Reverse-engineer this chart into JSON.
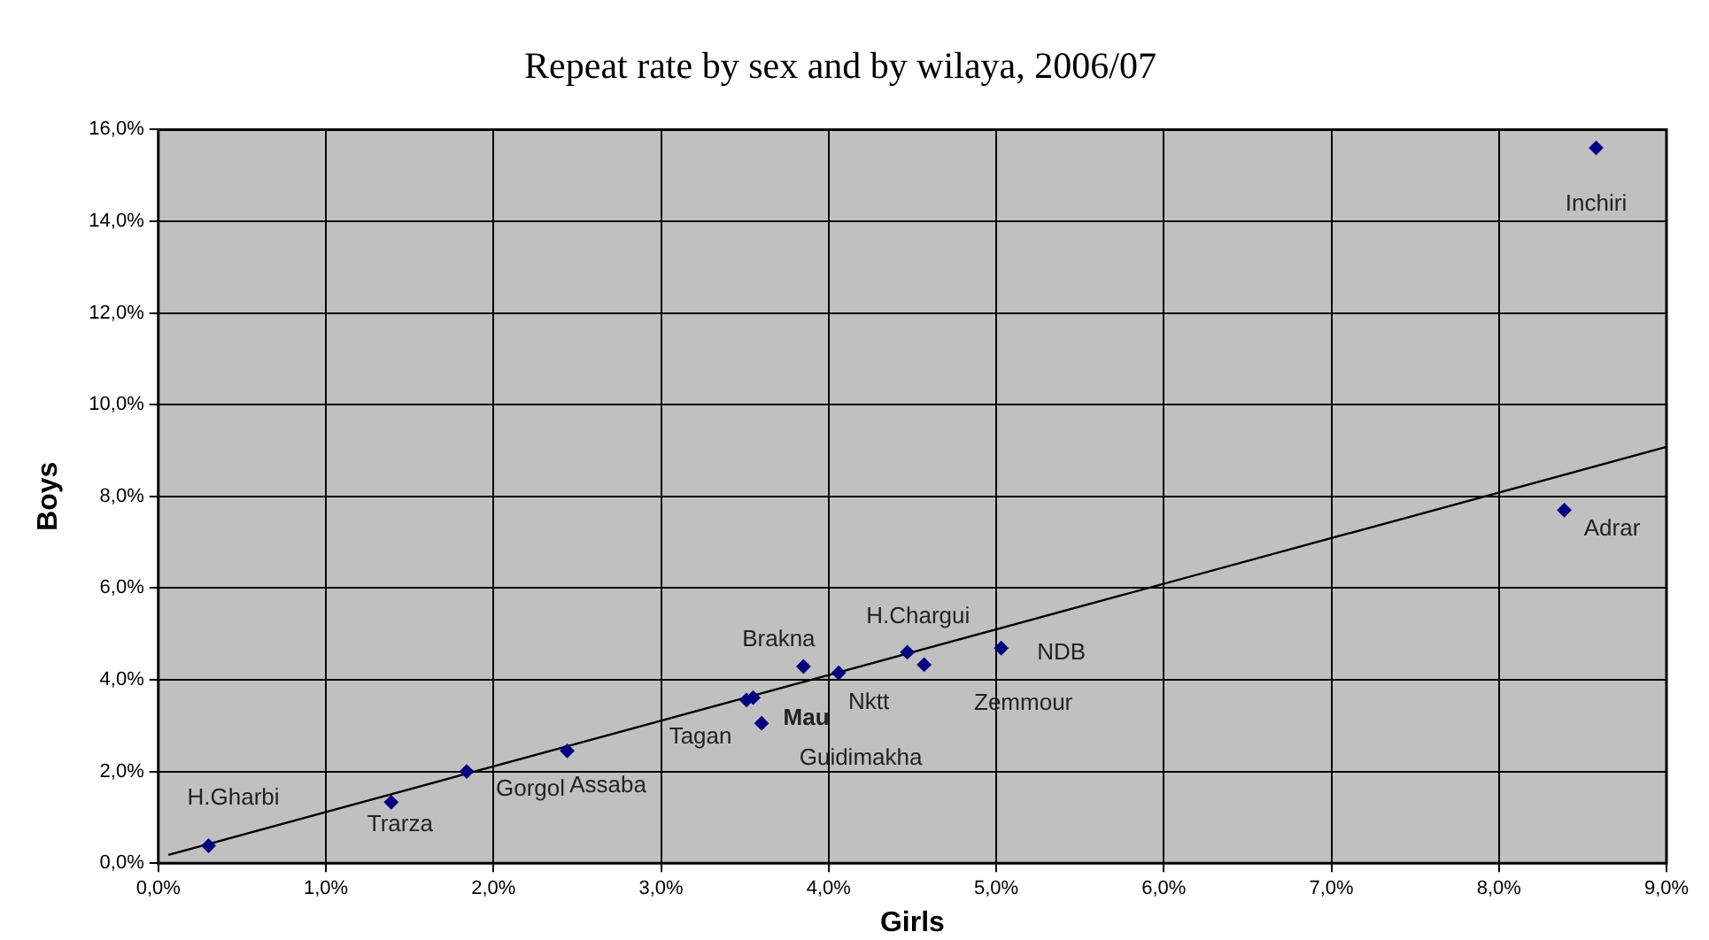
{
  "chart_data": {
    "type": "scatter",
    "title": "Repeat rate by sex and by wilaya, 2006/07",
    "xlabel": "Girls",
    "ylabel": "Boys",
    "xlim": [
      0,
      9
    ],
    "ylim": [
      0,
      16
    ],
    "xticks": [
      {
        "value": 0,
        "label": "0,0%"
      },
      {
        "value": 1,
        "label": "1,0%"
      },
      {
        "value": 2,
        "label": "2,0%"
      },
      {
        "value": 3,
        "label": "3,0%"
      },
      {
        "value": 4,
        "label": "4,0%"
      },
      {
        "value": 5,
        "label": "5,0%"
      },
      {
        "value": 6,
        "label": "6,0%"
      },
      {
        "value": 7,
        "label": "7,0%"
      },
      {
        "value": 8,
        "label": "8,0%"
      },
      {
        "value": 9,
        "label": "9,0%"
      }
    ],
    "yticks": [
      {
        "value": 0,
        "label": "0,0%"
      },
      {
        "value": 2,
        "label": "2,0%"
      },
      {
        "value": 4,
        "label": "4,0%"
      },
      {
        "value": 6,
        "label": "6,0%"
      },
      {
        "value": 8,
        "label": "8,0%"
      },
      {
        "value": 10,
        "label": "10,0%"
      },
      {
        "value": 12,
        "label": "12,0%"
      },
      {
        "value": 14,
        "label": "14,0%"
      },
      {
        "value": 16,
        "label": "16,0%"
      }
    ],
    "grid": true,
    "legend": false,
    "marker": "diamond",
    "series": [
      {
        "color": "#000080",
        "x": [
          0.3,
          1.39,
          1.84,
          2.44,
          3.51,
          3.55,
          3.6,
          3.85,
          4.06,
          4.47,
          4.57,
          5.03,
          8.39,
          8.58
        ],
        "values": [
          0.38,
          1.33,
          2.0,
          2.45,
          3.56,
          3.61,
          3.05,
          4.29,
          4.15,
          4.6,
          4.33,
          4.69,
          7.7,
          15.6
        ]
      },
      {
        "type": "line",
        "color": "#000000",
        "marker": "none",
        "x": [
          0.06,
          9
        ],
        "values": [
          0.18,
          9.08
        ]
      }
    ],
    "annotations": [
      {
        "text": "H.Gharbi",
        "x": 0.3,
        "y": 0.38
      },
      {
        "text": "Trarza",
        "x": 1.39,
        "y": 1.33
      },
      {
        "text": "Gorgol",
        "x": 1.84,
        "y": 2.0
      },
      {
        "text": "Assaba",
        "x": 2.44,
        "y": 2.45
      },
      {
        "text": "Tagan",
        "x": 3.51,
        "y": 3.56
      },
      {
        "text": "Mau",
        "x": 3.55,
        "y": 3.61
      },
      {
        "text": "Guidimakha",
        "x": 3.6,
        "y": 3.05
      },
      {
        "text": "Brakna",
        "x": 3.85,
        "y": 4.29
      },
      {
        "text": "Nktt",
        "x": 4.06,
        "y": 4.15
      },
      {
        "text": "H.Chargui",
        "x": 4.47,
        "y": 4.6
      },
      {
        "text": "Zemmour",
        "x": 4.57,
        "y": 4.33
      },
      {
        "text": "NDB",
        "x": 5.03,
        "y": 4.69
      },
      {
        "text": "Adrar",
        "x": 8.39,
        "y": 7.7
      },
      {
        "text": "Inchiri",
        "x": 8.58,
        "y": 15.6
      }
    ]
  }
}
